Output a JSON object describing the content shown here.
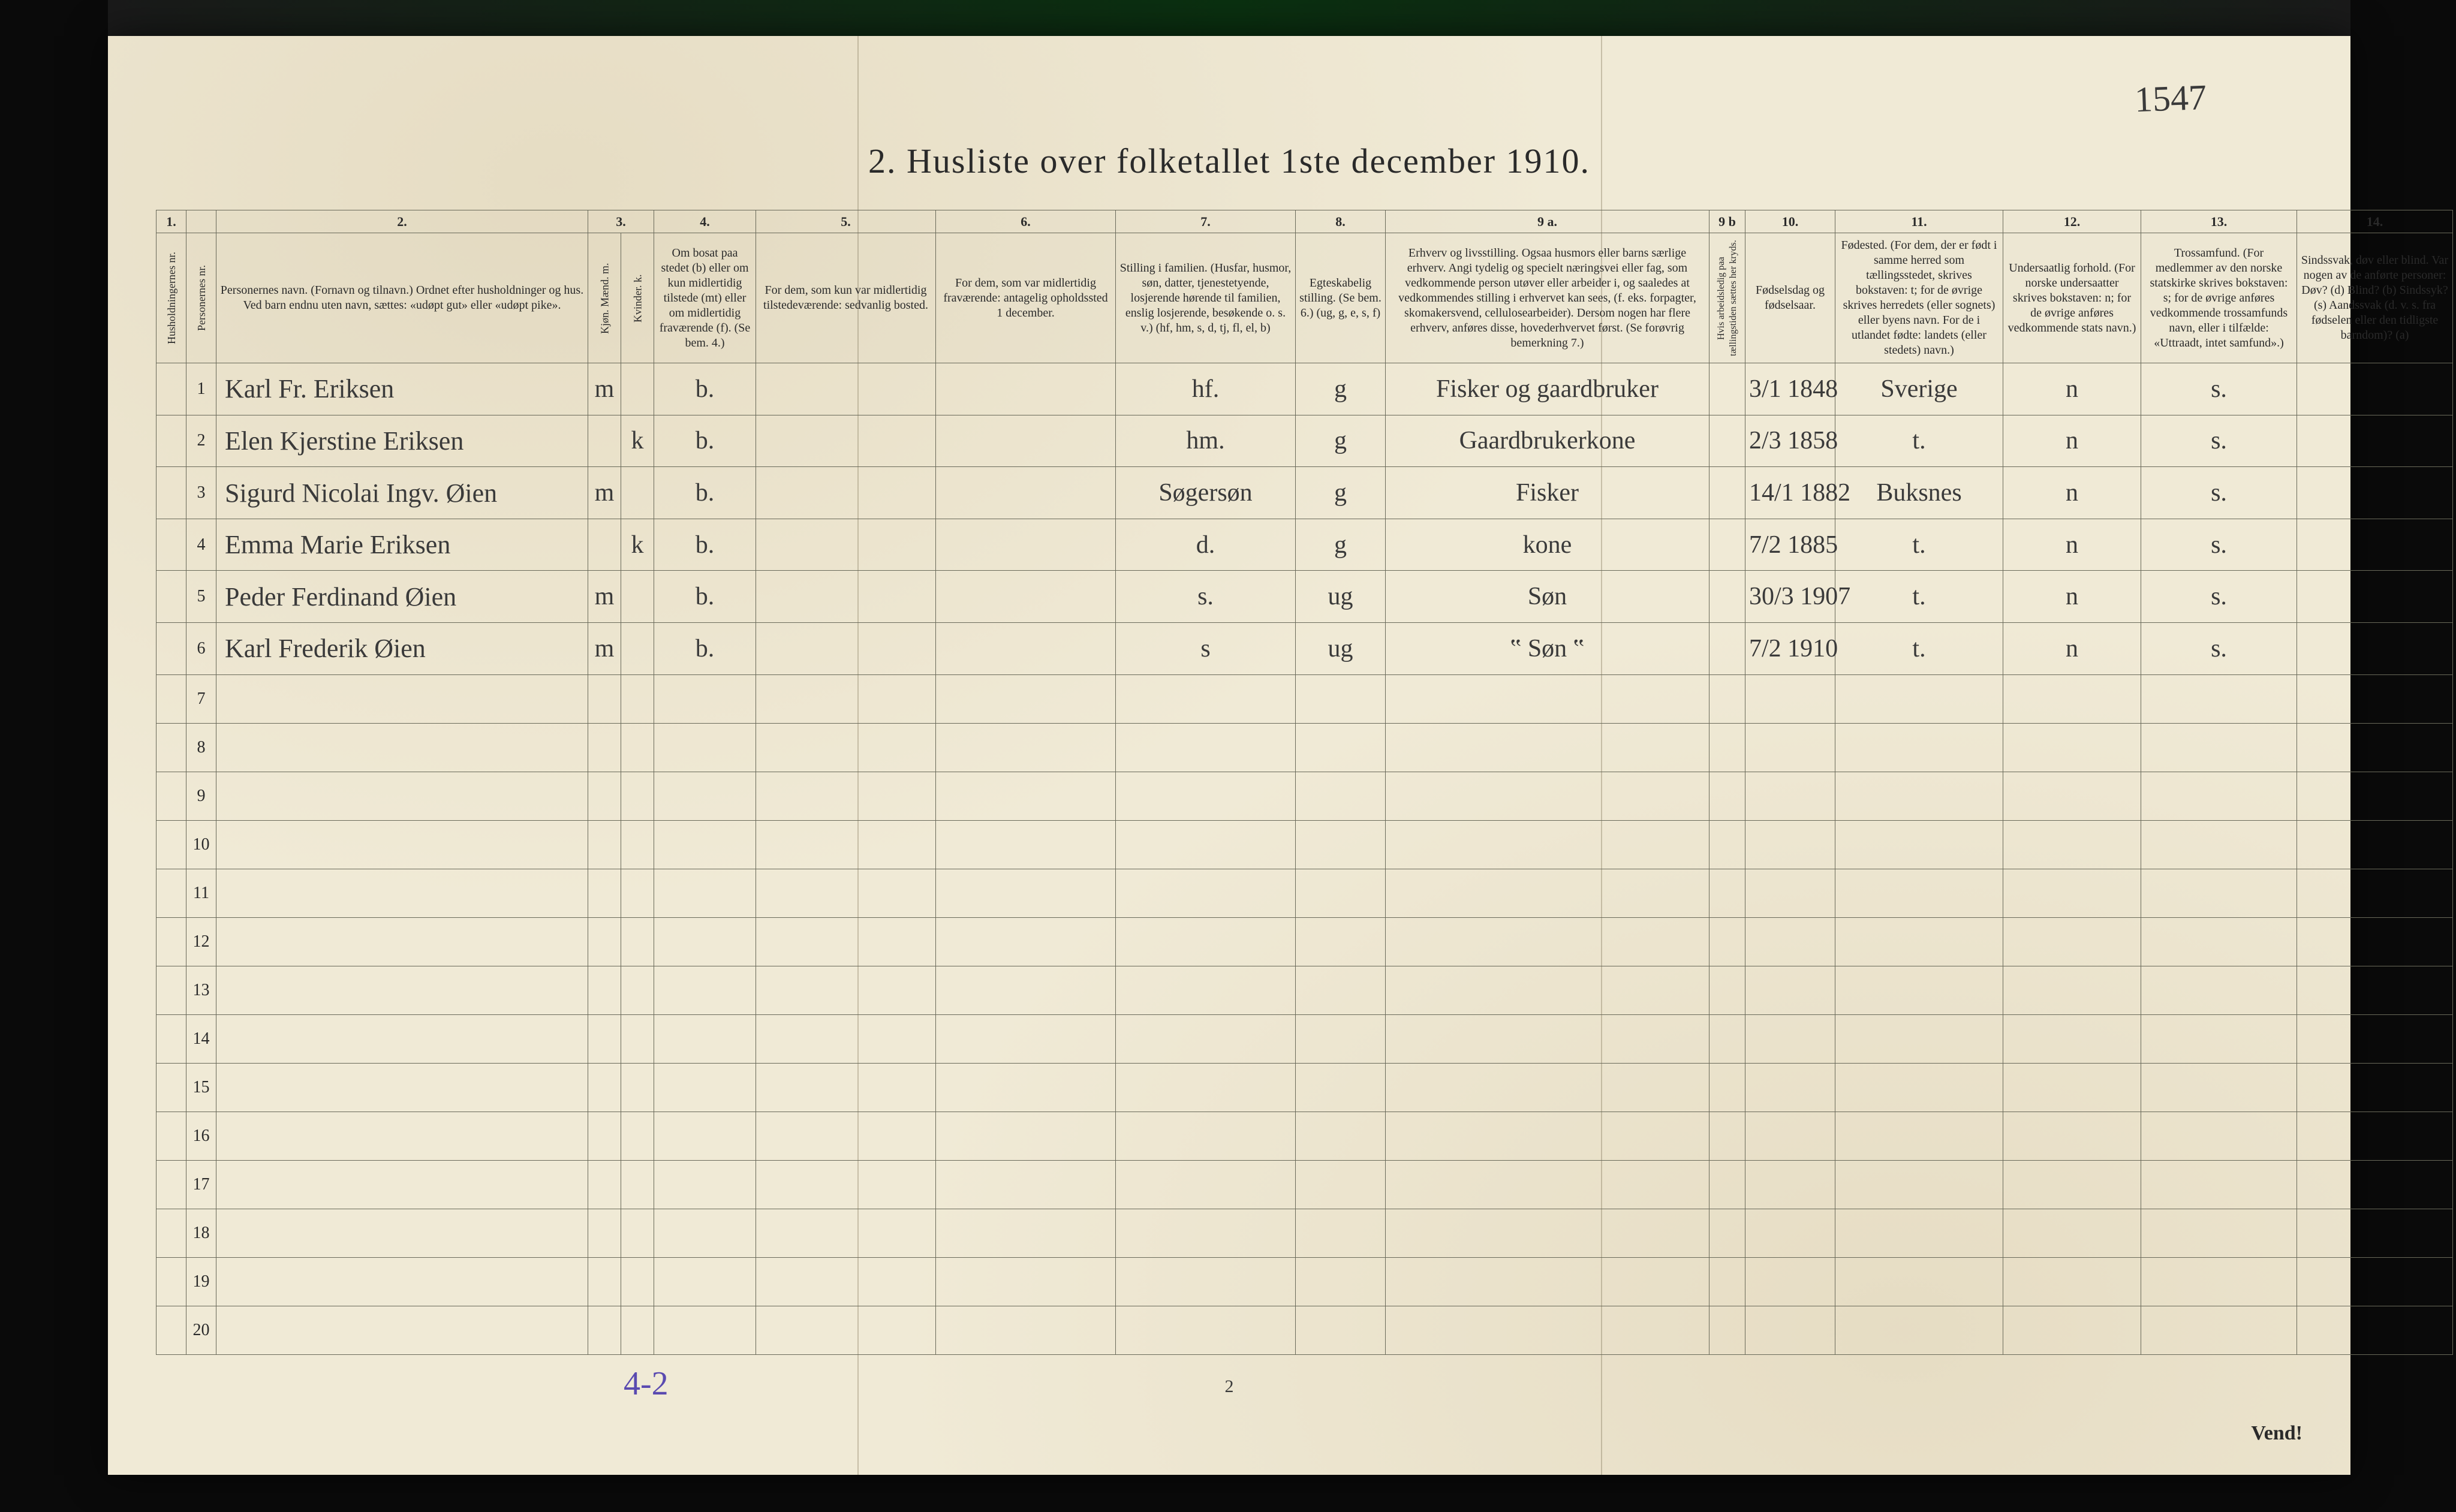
{
  "annotations": {
    "topright": "1547",
    "foot_left": "4-2",
    "foot_center": "2",
    "foot_right": "Vend!"
  },
  "title": "2.  Husliste over folketallet 1ste december 1910.",
  "colors": {
    "paper": "#f0ead6",
    "ink": "#2a2a2a",
    "handwriting": "#3a3a3a",
    "purple_pencil": "#5a4ab0",
    "rule": "#6a6a5a"
  },
  "columns": {
    "numbers": [
      "1.",
      "",
      "2.",
      "3.",
      "",
      "4.",
      "5.",
      "6.",
      "7.",
      "8.",
      "9 a.",
      "9 b",
      "10.",
      "11.",
      "12.",
      "13.",
      "14."
    ],
    "headers": [
      "Husholdningernes nr.",
      "Personernes nr.",
      "Personernes navn.\n(Fornavn og tilnavn.)\nOrdnet efter husholdninger og hus.\nVed barn endnu uten navn, sættes: «udøpt gut» eller «udøpt pike».",
      "Kjøn.\nMænd.\nm.",
      "Kvinder.\nk.",
      "Om bosat paa stedet (b) eller om kun midlertidig tilstede (mt) eller om midlertidig fraværende (f).\n(Se bem. 4.)",
      "For dem, som kun var midlertidig tilstedeværende:\nsedvanlig bosted.",
      "For dem, som var midlertidig fraværende:\nantagelig opholdssted 1 december.",
      "Stilling i familien.\n(Husfar, husmor, søn, datter, tjenestetyende, losjerende hørende til familien, enslig losjerende, besøkende o. s. v.)\n(hf, hm, s, d, tj, fl, el, b)",
      "Egteskabelig stilling.\n(Se bem. 6.)\n(ug, g, e, s, f)",
      "Erhverv og livsstilling.\nOgsaa husmors eller barns særlige erhverv. Angi tydelig og specielt næringsvei eller fag, som vedkommende person utøver eller arbeider i, og saaledes at vedkommendes stilling i erhvervet kan sees, (f. eks. forpagter, skomakersvend, cellulosearbeider). Dersom nogen har flere erhverv, anføres disse, hovederhvervet først.\n(Se forøvrig bemerkning 7.)",
      "Hvis arbeidsledig paa tællingstiden sættes her kryds.",
      "Fødselsdag og fødselsaar.",
      "Fødested.\n(For dem, der er født i samme herred som tællingsstedet, skrives bokstaven: t; for de øvrige skrives herredets (eller sognets) eller byens navn. For de i utlandet fødte: landets (eller stedets) navn.)",
      "Undersaatlig forhold.\n(For norske undersaatter skrives bokstaven: n; for de øvrige anføres vedkommende stats navn.)",
      "Trossamfund.\n(For medlemmer av den norske statskirke skrives bokstaven: s; for de øvrige anføres vedkommende trossamfunds navn, eller i tilfælde: «Uttraadt, intet samfund».)",
      "Sindssvak, døv eller blind.\nVar nogen av de anførte personer:\nDøv? (d)\nBlind? (b)\nSindssyk? (s)\nAandssvak (d. v. s. fra fødselen eller den tidligste barndom)? (a)"
    ]
  },
  "rows": [
    {
      "hnr": "",
      "pnr": "1",
      "name": "Karl Fr. Eriksen",
      "m": "m",
      "k": "",
      "bosat": "b.",
      "c5": "",
      "c6": "",
      "stilling": "hf.",
      "egte": "g",
      "erhverv": "Fisker og gaardbruker",
      "c9b": "",
      "fodsel": "3/1 1848",
      "fodested": "Sverige",
      "under": "n",
      "tros": "s.",
      "c14": ""
    },
    {
      "hnr": "",
      "pnr": "2",
      "name": "Elen Kjerstine Eriksen",
      "m": "",
      "k": "k",
      "bosat": "b.",
      "c5": "",
      "c6": "",
      "stilling": "hm.",
      "egte": "g",
      "erhverv": "Gaardbrukerkone",
      "c9b": "",
      "fodsel": "2/3 1858",
      "fodested": "t.",
      "under": "n",
      "tros": "s.",
      "c14": ""
    },
    {
      "hnr": "",
      "pnr": "3",
      "name": "Sigurd Nicolai Ingv. Øien",
      "m": "m",
      "k": "",
      "bosat": "b.",
      "c5": "",
      "c6": "",
      "stilling": "Søgersøn",
      "egte": "g",
      "erhverv": "Fisker",
      "c9b": "",
      "fodsel": "14/1 1882",
      "fodested": "Buksnes",
      "under": "n",
      "tros": "s.",
      "c14": ""
    },
    {
      "hnr": "",
      "pnr": "4",
      "name": "Emma Marie Eriksen",
      "m": "",
      "k": "k",
      "bosat": "b.",
      "c5": "",
      "c6": "",
      "stilling": "d.",
      "egte": "g",
      "erhverv": "kone",
      "c9b": "",
      "fodsel": "7/2 1885",
      "fodested": "t.",
      "under": "n",
      "tros": "s.",
      "c14": ""
    },
    {
      "hnr": "",
      "pnr": "5",
      "name": "Peder Ferdinand Øien",
      "m": "m",
      "k": "",
      "bosat": "b.",
      "c5": "",
      "c6": "",
      "stilling": "s.",
      "egte": "ug",
      "erhverv": "Søn",
      "c9b": "",
      "fodsel": "30/3 1907",
      "fodested": "t.",
      "under": "n",
      "tros": "s.",
      "c14": ""
    },
    {
      "hnr": "",
      "pnr": "6",
      "name": "Karl Frederik Øien",
      "m": "m",
      "k": "",
      "bosat": "b.",
      "c5": "",
      "c6": "",
      "stilling": "s",
      "egte": "ug",
      "erhverv": "‟  Søn  ‟",
      "c9b": "",
      "fodsel": "7/2 1910",
      "fodested": "t.",
      "under": "n",
      "tros": "s.",
      "c14": ""
    }
  ],
  "empty_row_labels": [
    "7",
    "8",
    "9",
    "10",
    "11",
    "12",
    "13",
    "14",
    "15",
    "16",
    "17",
    "18",
    "19",
    "20"
  ]
}
